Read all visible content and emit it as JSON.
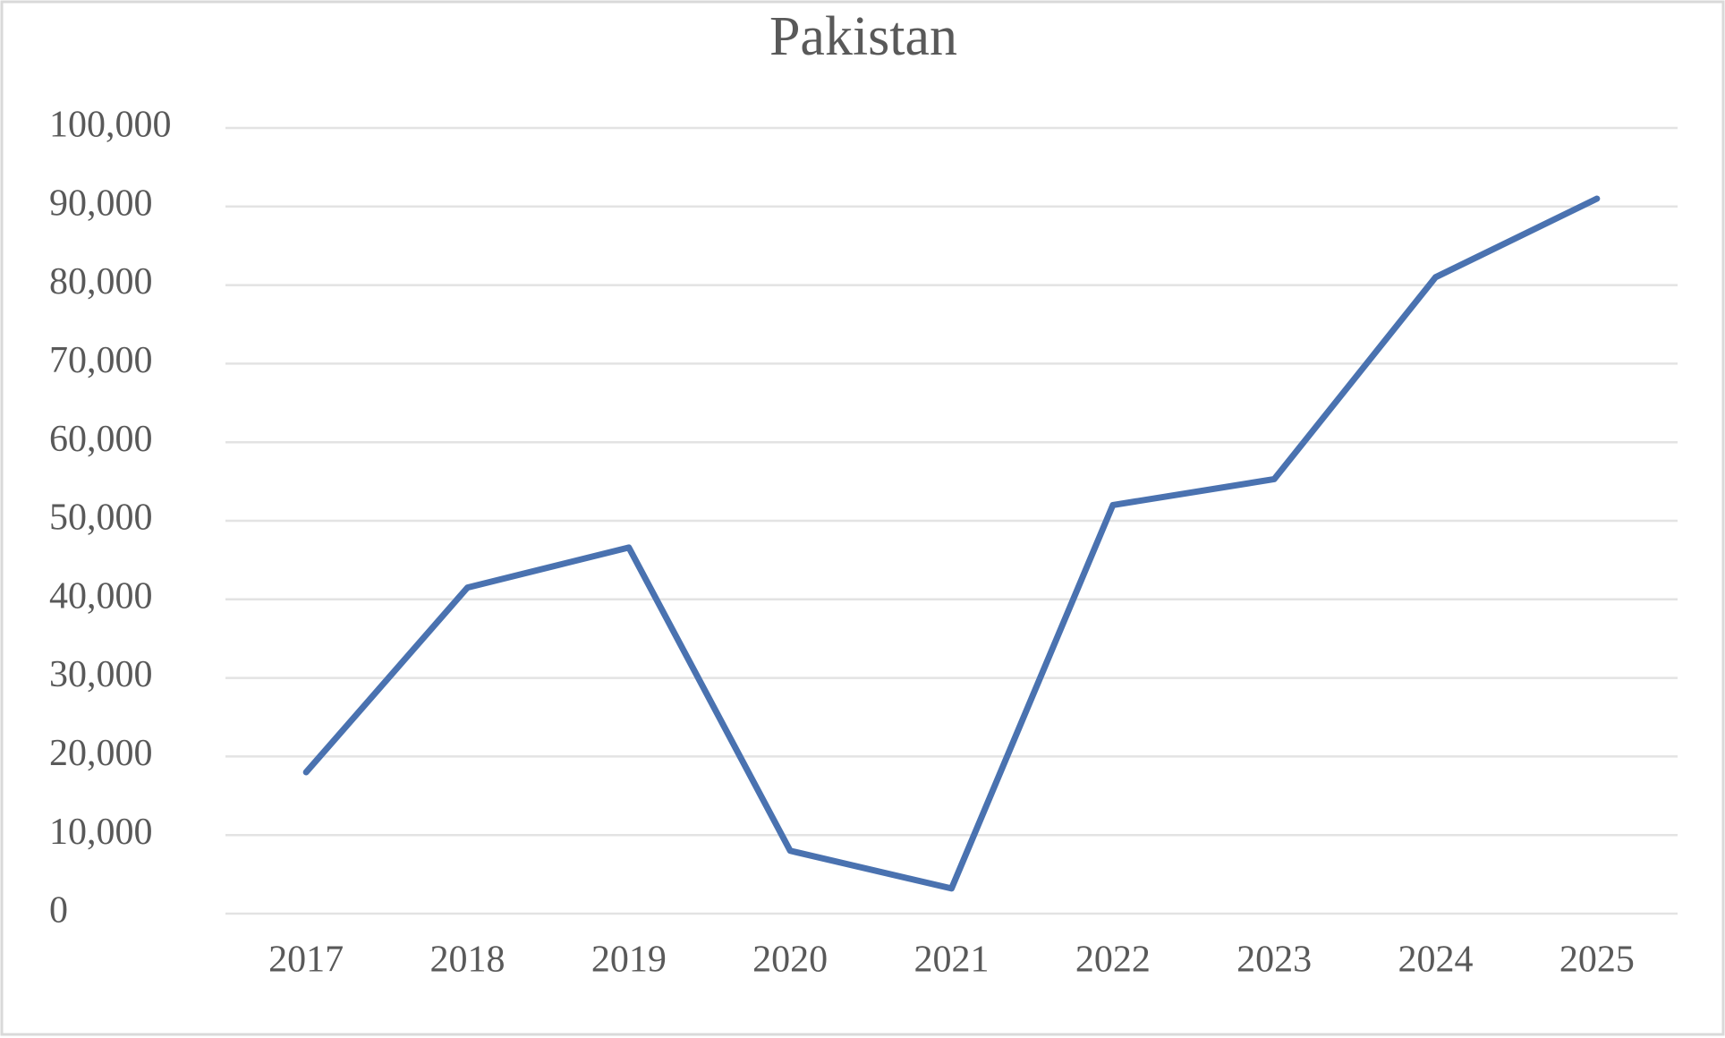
{
  "chart_data": {
    "type": "line",
    "title": "Pakistan",
    "categories": [
      "2017",
      "2018",
      "2019",
      "2020",
      "2021",
      "2022",
      "2023",
      "2024",
      "2025"
    ],
    "series": [
      {
        "color": "#4a72b0",
        "values": [
          18000,
          41500,
          46600,
          8000,
          3200,
          52000,
          55300,
          81000,
          91000
        ]
      }
    ],
    "ylim": [
      0,
      100000
    ],
    "yticks": [
      0,
      {
        "value": 10000,
        "label": "10,000"
      },
      {
        "value": 20000,
        "label": "20,000"
      },
      {
        "value": 30000,
        "label": "30,000"
      },
      {
        "value": 40000,
        "label": "40,000"
      },
      {
        "value": 50000,
        "label": "50,000"
      },
      {
        "value": 60000,
        "label": "60,000"
      },
      {
        "value": 70000,
        "label": "70,000"
      },
      {
        "value": 80000,
        "label": "80,000"
      },
      {
        "value": 90000,
        "label": "90,000"
      },
      {
        "value": 100000,
        "label": "100,000"
      }
    ],
    "grid": true
  }
}
